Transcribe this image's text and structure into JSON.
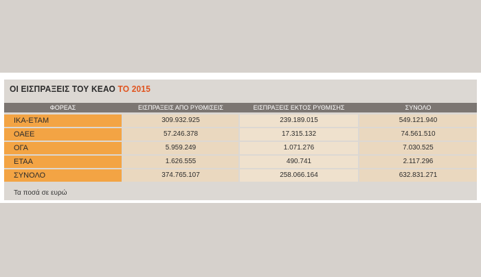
{
  "chart_data": {
    "type": "table",
    "title_main": "ΟΙ ΕΙΣΠΡΑΞΕΙΣ ΤΟΥ ΚΕΑΟ",
    "title_accent": "ΤΟ 2015",
    "columns": [
      "ΦΟΡΕΑΣ",
      "ΕΙΣΠΡΑΞΕΙΣ ΑΠΟ ΡΥΘΜΙΣΕΙΣ",
      "ΕΙΣΠΡΑΞΕΙΣ ΕΚΤΟΣ ΡΥΘΜΙΣΗΣ",
      "ΣΥΝΟΛΟ"
    ],
    "rows": [
      [
        "ΙΚΑ-ΕΤΑΜ",
        "309.932.925",
        "239.189.015",
        "549.121.940"
      ],
      [
        "ΟΑΕΕ",
        "57.246.378",
        "17.315.132",
        "74.561.510"
      ],
      [
        "ΟΓΑ",
        "5.959.249",
        "1.071.276",
        "7.030.525"
      ],
      [
        "ΕΤΑΑ",
        "1.626.555",
        "490.741",
        "2.117.296"
      ],
      [
        "ΣΥΝΟΛΟ",
        "374.765.107",
        "258.066.164",
        "632.831.271"
      ]
    ],
    "note": "Τα ποσά σε ευρώ"
  },
  "colors": {
    "accent": "#e0541f",
    "header_bg": "#7c7672",
    "label_bg": "#f3a444",
    "value_bg": "#ead8bf"
  }
}
